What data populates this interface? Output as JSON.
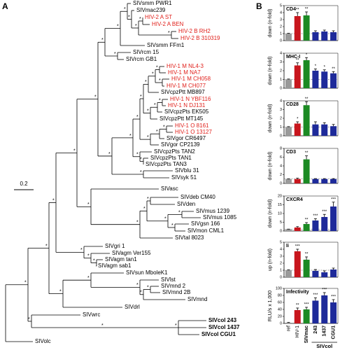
{
  "panel_a": {
    "label": "A",
    "scale_label": "0.2",
    "node_support": "*",
    "taxa": [
      {
        "label": "SIVsmm PWR1"
      },
      {
        "label": "SIVmac239"
      },
      {
        "label": "HIV-2 A ST",
        "color": "#e0201b"
      },
      {
        "label": "HIV-2 A BEN",
        "color": "#e0201b"
      },
      {
        "label": "HIV-2 B RH2",
        "color": "#e0201b"
      },
      {
        "label": "HIV-2 B 310319",
        "color": "#e0201b"
      },
      {
        "label": "SIVsmm FFm1"
      },
      {
        "label": "SIVrcm 15"
      },
      {
        "label": "SIVrcm GB1"
      },
      {
        "label": "HIV-1 M NL4-3",
        "color": "#e0201b"
      },
      {
        "label": "HIV-1 M NA7",
        "color": "#e0201b"
      },
      {
        "label": "HIV-1 M CH058",
        "color": "#e0201b"
      },
      {
        "label": "HIV-1 M CH077",
        "color": "#e0201b"
      },
      {
        "label": "SIVcpzPtt MB897"
      },
      {
        "label": "HIV-1 N YBF116",
        "color": "#e0201b"
      },
      {
        "label": "HIV-1 N DJ131",
        "color": "#e0201b"
      },
      {
        "label": "SIVcpzPts EK505"
      },
      {
        "label": "SIVcpzPtt MT145"
      },
      {
        "label": "HIV-1 O 8161",
        "color": "#e0201b"
      },
      {
        "label": "HIV-1 O 13127",
        "color": "#e0201b"
      },
      {
        "label": "SIVgor CR6497"
      },
      {
        "label": "SIVgor CP2139"
      },
      {
        "label": "SIVcpzPts TAN2"
      },
      {
        "label": "SIVcpzPts TAN1"
      },
      {
        "label": "SIVcpzPts TAN3"
      },
      {
        "label": "SIVblu 31"
      },
      {
        "label": "SIVsyk 51"
      },
      {
        "label": "SIVasc"
      },
      {
        "label": "SIVdeb CM40"
      },
      {
        "label": "SIVden"
      },
      {
        "label": "SIVmus 1239"
      },
      {
        "label": "SIVmus 1085"
      },
      {
        "label": "SIVgsn 166"
      },
      {
        "label": "SIVmon CML1"
      },
      {
        "label": "SIVtal 8023"
      },
      {
        "label": "SIVgri 1"
      },
      {
        "label": "SIVagm Ver155"
      },
      {
        "label": "SIVagm tan1"
      },
      {
        "label": "SIVagm sab1"
      },
      {
        "label": "SIVsun MboleK1"
      },
      {
        "label": "SIVlst"
      },
      {
        "label": "SIVmnd 2"
      },
      {
        "label": "SIVmnd 2B"
      },
      {
        "label": "SIVmnd"
      },
      {
        "label": "SIVdrl"
      },
      {
        "label": "SIVwrc"
      },
      {
        "label": "SIVcol 243",
        "weight": "bold"
      },
      {
        "label": "SIVcol 1437",
        "weight": "bold"
      },
      {
        "label": "SIVcol CGU1",
        "weight": "bold"
      },
      {
        "label": "SIVolc"
      }
    ]
  },
  "panel_b": {
    "label": "B"
  },
  "chart_data": [
    {
      "type": "bar",
      "title": "CD4",
      "ylabel": "down (n-fold)",
      "values": [
        1,
        3.5,
        3.6,
        1.2,
        1.3,
        1.2
      ],
      "errors": [
        0.05,
        0.5,
        0.5,
        0.2,
        0.2,
        0.2
      ],
      "colors": [
        "#9a9a9a",
        "#c8161d",
        "#1b8a23",
        "#1e2a9a",
        "#1e2a9a",
        "#1e2a9a"
      ],
      "ylim": [
        0,
        5
      ],
      "yticks": [
        0,
        1,
        2,
        3,
        4,
        5
      ],
      "refline": 1,
      "significance": [
        null,
        "**",
        "**",
        null,
        null,
        null
      ]
    },
    {
      "type": "bar",
      "title": "MHC-I",
      "ylabel": "down (n-fold)",
      "values": [
        1,
        2.6,
        3.2,
        2.0,
        1.9,
        1.7
      ],
      "errors": [
        0.05,
        0.3,
        0.3,
        0.2,
        0.2,
        0.2
      ],
      "colors": [
        "#9a9a9a",
        "#c8161d",
        "#1b8a23",
        "#1e2a9a",
        "#1e2a9a",
        "#1e2a9a"
      ],
      "ylim": [
        0,
        4
      ],
      "yticks": [
        0,
        1,
        2,
        3,
        4
      ],
      "refline": 1,
      "significance": [
        null,
        "**",
        "*",
        "*",
        "*",
        "**"
      ]
    },
    {
      "type": "bar",
      "title": "CD28",
      "ylabel": "down (n-fold)",
      "values": [
        1,
        1.4,
        3.5,
        1.3,
        1.3,
        1.1
      ],
      "errors": [
        0.05,
        0.2,
        0.4,
        0.3,
        0.2,
        0.2
      ],
      "colors": [
        "#9a9a9a",
        "#c8161d",
        "#1b8a23",
        "#1e2a9a",
        "#1e2a9a",
        "#1e2a9a"
      ],
      "ylim": [
        0,
        4
      ],
      "yticks": [
        0,
        1,
        2,
        3,
        4
      ],
      "refline": 1,
      "significance": [
        null,
        "*",
        "**",
        null,
        null,
        null
      ]
    },
    {
      "type": "bar",
      "title": "CD3",
      "ylabel": "down (n-fold)",
      "values": [
        1,
        1.0,
        5.5,
        1.0,
        1.0,
        1.0
      ],
      "errors": [
        0.05,
        0.2,
        0.8,
        0.1,
        0.1,
        0.1
      ],
      "colors": [
        "#9a9a9a",
        "#c8161d",
        "#1b8a23",
        "#1e2a9a",
        "#1e2a9a",
        "#1e2a9a"
      ],
      "ylim": [
        0,
        8
      ],
      "yticks": [
        0,
        2,
        4,
        6,
        8
      ],
      "refline": 1,
      "significance": [
        null,
        null,
        "**",
        null,
        null,
        null
      ]
    },
    {
      "type": "bar",
      "title": "CXCR4",
      "ylabel": "down (n-fold)",
      "values": [
        1,
        2,
        4,
        6,
        8,
        14
      ],
      "errors": [
        0.1,
        0.5,
        0.8,
        1,
        1.5,
        2.5
      ],
      "colors": [
        "#9a9a9a",
        "#c8161d",
        "#1b8a23",
        "#1e2a9a",
        "#1e2a9a",
        "#1e2a9a"
      ],
      "ylim": [
        0,
        20
      ],
      "yticks": [
        0,
        5,
        10,
        15,
        20
      ],
      "refline": 1,
      "significance": [
        null,
        null,
        "**",
        "***",
        "***",
        "***"
      ]
    },
    {
      "type": "bar",
      "title": "Ii",
      "ylabel": "up (n-fold)",
      "values": [
        1,
        3.7,
        2.5,
        0.9,
        0.7,
        1.1
      ],
      "errors": [
        0.05,
        0.3,
        0.4,
        0.2,
        0.2,
        0.2
      ],
      "colors": [
        "#9a9a9a",
        "#c8161d",
        "#1b8a23",
        "#1e2a9a",
        "#1e2a9a",
        "#1e2a9a"
      ],
      "ylim": [
        0,
        5
      ],
      "yticks": [
        0,
        1,
        2,
        3,
        4,
        5
      ],
      "refline": 1,
      "significance": [
        null,
        "***",
        "**",
        null,
        null,
        null
      ]
    },
    {
      "type": "bar",
      "title": "Infectivity",
      "ylabel": "RLU/s x 1,000",
      "values": [
        2,
        38,
        40,
        65,
        80,
        60
      ],
      "errors": [
        1,
        6,
        6,
        8,
        8,
        8
      ],
      "colors": [
        "#9a9a9a",
        "#c8161d",
        "#1b8a23",
        "#1e2a9a",
        "#1e2a9a",
        "#1e2a9a"
      ],
      "ylim": [
        0,
        100
      ],
      "yticks": [
        0,
        20,
        40,
        60,
        80,
        100
      ],
      "significance": [
        null,
        "**",
        "***",
        "***",
        "***",
        "***"
      ],
      "categories": [
        "ref",
        "HIV-1",
        "SIVmac",
        "243",
        "1437",
        "CGU1"
      ],
      "group_label": "SIVcol"
    }
  ]
}
